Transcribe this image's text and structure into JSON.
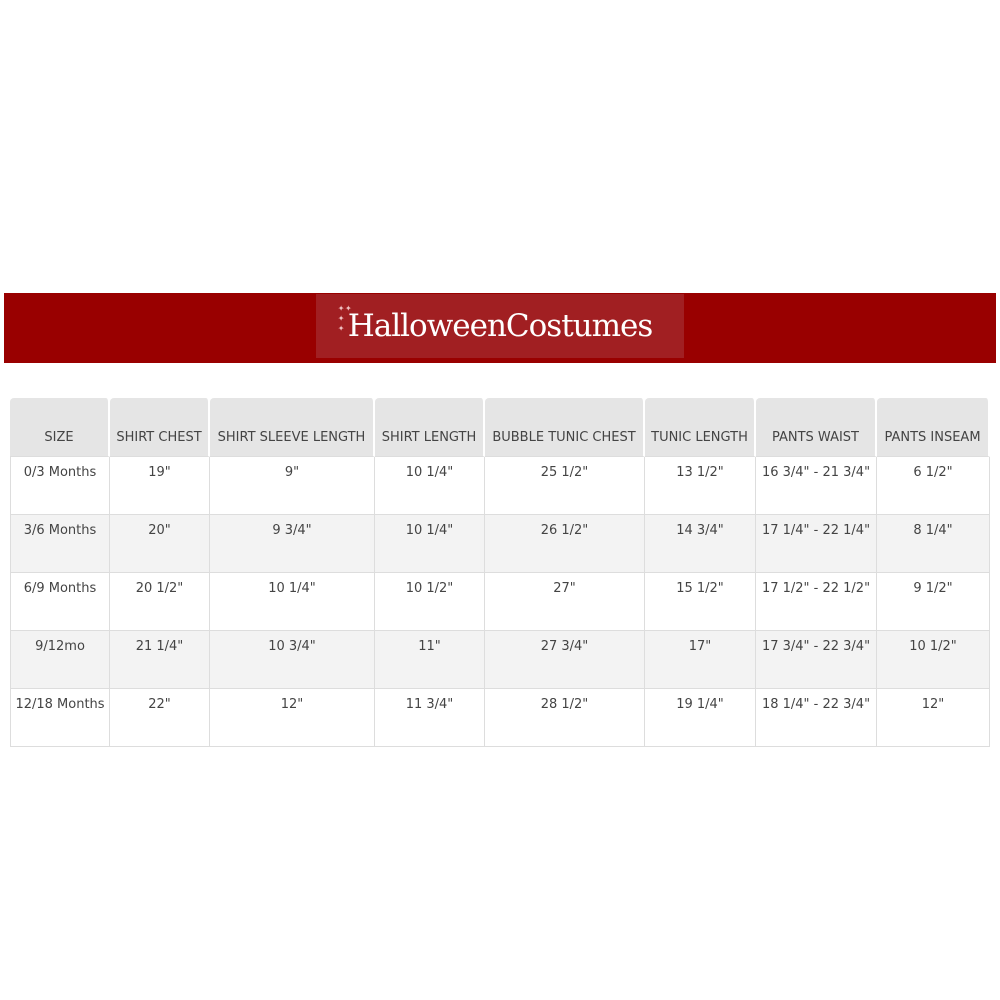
{
  "banner": {
    "logo_text": "HalloweenCostumes",
    "brand_color": "#990000"
  },
  "table": {
    "headers": [
      "SIZE",
      "SHIRT CHEST",
      "SHIRT SLEEVE LENGTH",
      "SHIRT LENGTH",
      "BUBBLE TUNIC CHEST",
      "TUNIC LENGTH",
      "PANTS WAIST",
      "PANTS INSEAM"
    ],
    "rows": [
      [
        "0/3 Months",
        "19\"",
        "9\"",
        "10 1/4\"",
        "25 1/2\"",
        "13 1/2\"",
        "16 3/4\" - 21 3/4\"",
        "6 1/2\""
      ],
      [
        "3/6 Months",
        "20\"",
        "9 3/4\"",
        "10 1/4\"",
        "26 1/2\"",
        "14 3/4\"",
        "17 1/4\" - 22 1/4\"",
        "8 1/4\""
      ],
      [
        "6/9 Months",
        "20 1/2\"",
        "10 1/4\"",
        "10 1/2\"",
        "27\"",
        "15 1/2\"",
        "17 1/2\" - 22 1/2\"",
        "9 1/2\""
      ],
      [
        "9/12mo",
        "21 1/4\"",
        "10 3/4\"",
        "11\"",
        "27 3/4\"",
        "17\"",
        "17 3/4\" - 22 3/4\"",
        "10 1/2\""
      ],
      [
        "12/18 Months",
        "22\"",
        "12\"",
        "11 3/4\"",
        "28 1/2\"",
        "19 1/4\"",
        "18 1/4\" - 22 3/4\"",
        "12\""
      ]
    ]
  }
}
